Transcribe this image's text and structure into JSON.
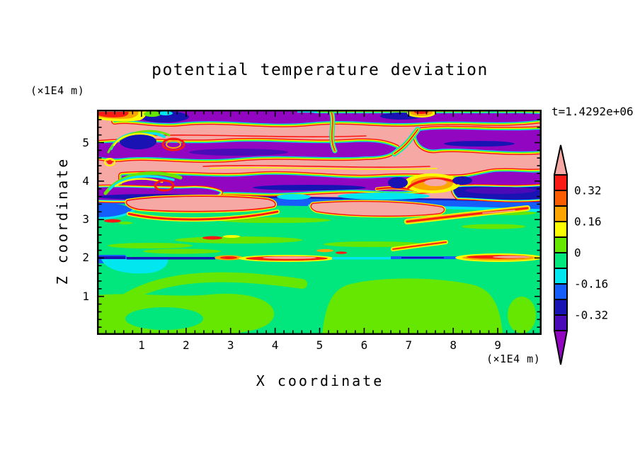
{
  "title": "potential temperature deviation",
  "timestamp": "t=1.4292e+06",
  "x_axis": {
    "label": "X coordinate",
    "units": "(×1E4 m)",
    "ticks": [
      "1",
      "2",
      "3",
      "4",
      "5",
      "6",
      "7",
      "8",
      "9"
    ]
  },
  "y_axis": {
    "label": "Z coordinate",
    "units": "(×1E4 m)",
    "ticks": [
      "1",
      "2",
      "3",
      "4",
      "5"
    ]
  },
  "colorbar": {
    "segment_colors": [
      "red",
      "orangered",
      "orange",
      "yellow",
      "chartreuse",
      "green",
      "cyan",
      "blue",
      "navy",
      "indigo"
    ],
    "arrow_top_color": "pink",
    "arrow_bottom_color": "purple",
    "labels": [
      {
        "text": "0.32",
        "at": 1
      },
      {
        "text": "0.16",
        "at": 3
      },
      {
        "text": "0",
        "at": 5
      },
      {
        "text": "-0.16",
        "at": 7
      },
      {
        "text": "-0.32",
        "at": 9
      }
    ]
  },
  "palette": {
    "pink": "#F6A9A4",
    "red": "#FA1A15",
    "orangered": "#FB5C02",
    "orange": "#FCA402",
    "yellow": "#FBFB02",
    "chartreuse": "#66E702",
    "green": "#02E77D",
    "cyan": "#02E6EF",
    "blue": "#155EFB",
    "navy": "#1A13B3",
    "indigo": "#4A0AB8",
    "purple": "#9206C2"
  },
  "chart_data": {
    "type": "heatmap",
    "title": "potential temperature deviation",
    "xlabel": "X coordinate",
    "ylabel": "Z coordinate",
    "x_units": "×1E4 m",
    "y_units": "×1E4 m",
    "xlim": [
      0,
      10
    ],
    "ylim": [
      0,
      5.9
    ],
    "x_ticks": [
      1,
      2,
      3,
      4,
      5,
      6,
      7,
      8,
      9
    ],
    "y_ticks": [
      1,
      2,
      3,
      4,
      5
    ],
    "minor_tick_step": 0.2,
    "time_annotation": "t=1.4292e+06",
    "colorbar_tick_labels": [
      0.32,
      0.16,
      0,
      -0.16,
      -0.32
    ],
    "contour_levels": [
      -0.4,
      -0.32,
      -0.24,
      -0.16,
      -0.08,
      0,
      0.08,
      0.16,
      0.24,
      0.32,
      0.4
    ],
    "level_colors_low_to_high": [
      "purple",
      "indigo",
      "navy",
      "blue",
      "cyan",
      "green",
      "chartreuse",
      "yellow",
      "orange",
      "orangered",
      "red",
      "pink"
    ],
    "field_summary": [
      "z ≈ 3.5–5.9: alternating horizontal wave bands of strong positive (pink, >0.4) and strong negative (purple, <-0.4) deviation with thin rainbow contour fringes",
      "z ≈ 3.4: continuous blue band (≈ -0.2) across full width",
      "z ≈ 0–3.3: near-zero field, spring green (0 to -0.08) with chartreuse patches (0 to +0.08)",
      "z ≈ 2.0: thin negative filament (navy/blue/cyan) on left, thin positive filament (red/salmon/orange) on right",
      "small positive anomalies (red/orange/yellow) near x≈6, z≈4 and along band edges"
    ]
  }
}
